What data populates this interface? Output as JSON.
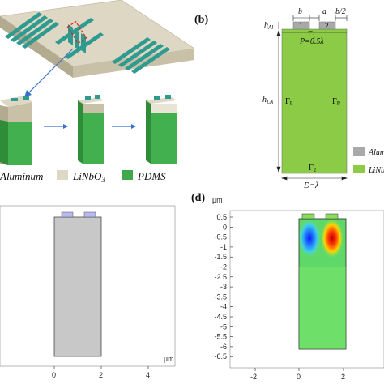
{
  "panel_labels": {
    "b": "(b)",
    "d": "(d)"
  },
  "legend_a": {
    "aluminum": "Aluminum",
    "linbo3_base": "LiNbO",
    "linbo3_sub": "3",
    "pdms": "PDMS"
  },
  "legend_b": {
    "aluminum": "Alum",
    "linbo": "LiNb"
  },
  "panel_b": {
    "h_al_main": "h",
    "h_al_sub": "Al",
    "h_ln_main": "h",
    "h_ln_sub": "LN",
    "dim_b": "b",
    "dim_a": "a",
    "dim_b2": "b/2",
    "electrode_1": "1",
    "electrode_2": "2",
    "gamma_1": "Γ",
    "gamma_1_sub": "1",
    "period": "P=0.5λ",
    "gamma_L": "Γ",
    "gamma_L_sub": "L",
    "gamma_R": "Γ",
    "gamma_R_sub": "R",
    "gamma_2": "Γ",
    "gamma_2_sub": "2",
    "depth": "D=λ"
  },
  "panel_c": {
    "x_unit": "µm",
    "x_ticks": [
      "0",
      "2",
      "4"
    ]
  },
  "panel_d": {
    "y_unit": "µm",
    "y_ticks": [
      "0.5",
      "0",
      "-0.5",
      "-1",
      "-1.5",
      "-2",
      "-2.5",
      "-3",
      "-3.5",
      "-4",
      "-4.5",
      "-5",
      "-5.5",
      "-6",
      "-6.5"
    ],
    "x_ticks": [
      "-2",
      "0",
      "2"
    ]
  },
  "colors": {
    "linbo3": "#8bcb46",
    "aluminum": "#a9a9a9",
    "pdms": "#3ea84a",
    "substrate_top": "#ddd7c3",
    "electrode": "#2f9a8f",
    "mesh_gray": "#c8c8c8",
    "electrode_blue": "#b7b9f2"
  }
}
